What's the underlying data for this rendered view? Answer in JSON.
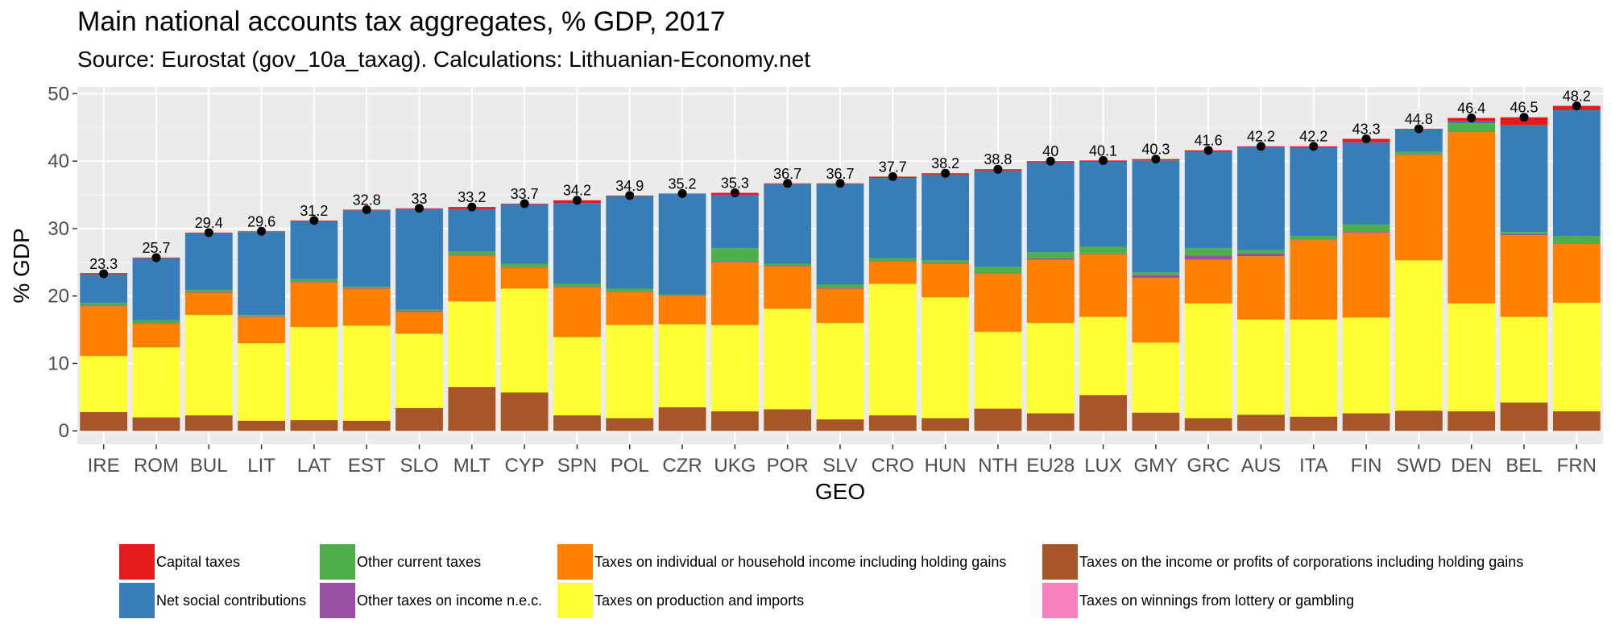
{
  "chart_data": {
    "type": "bar",
    "stacked": true,
    "title": "Main national accounts tax aggregates, % GDP,  2017",
    "subtitle": "Source: Eurostat (gov_10a_taxag). Calculations: Lithuanian-Economy.net",
    "xlabel": "GEO",
    "ylabel": "% GDP",
    "ylim": [
      -2,
      51
    ],
    "yticks": [
      0,
      10,
      20,
      30,
      40,
      50
    ],
    "grid": true,
    "legend_position": "bottom",
    "categories": [
      "IRE",
      "ROM",
      "BUL",
      "LIT",
      "LAT",
      "EST",
      "SLO",
      "MLT",
      "CYP",
      "SPN",
      "POL",
      "CZR",
      "UKG",
      "POR",
      "SLV",
      "CRO",
      "HUN",
      "NTH",
      "EU28",
      "LUX",
      "GMY",
      "GRC",
      "AUS",
      "ITA",
      "FIN",
      "SWD",
      "DEN",
      "BEL",
      "FRN"
    ],
    "totals": [
      23.3,
      25.7,
      29.4,
      29.6,
      31.2,
      32.8,
      33,
      33.2,
      33.7,
      34.2,
      34.9,
      35.2,
      35.3,
      36.7,
      36.7,
      37.7,
      38.2,
      38.8,
      40,
      40.1,
      40.3,
      41.6,
      42.2,
      42.2,
      43.3,
      44.8,
      46.4,
      46.5,
      48.2
    ],
    "total_labels": [
      "23.3",
      "25.7",
      "29.4",
      "29.6",
      "31.2",
      "32.8",
      "33",
      "33.2",
      "33.7",
      "34.2",
      "34.9",
      "35.2",
      "35.3",
      "36.7",
      "36.7",
      "37.7",
      "38.2",
      "38.8",
      "40",
      "40.1",
      "40.3",
      "41.6",
      "42.2",
      "42.2",
      "43.3",
      "44.8",
      "46.4",
      "46.5",
      "48.2"
    ],
    "series": [
      {
        "name": "Taxes on the income or profits of corporations including holding gains",
        "color": "#A65628",
        "values": [
          2.8,
          2.0,
          2.3,
          1.5,
          1.6,
          1.5,
          3.4,
          6.5,
          5.7,
          2.3,
          1.9,
          3.5,
          2.9,
          3.2,
          1.7,
          2.3,
          1.9,
          3.3,
          2.6,
          5.3,
          2.7,
          1.9,
          2.4,
          2.1,
          2.6,
          3.0,
          2.9,
          4.2,
          2.9
        ]
      },
      {
        "name": "Taxes on production and imports",
        "color": "#FFFF33",
        "values": [
          8.3,
          10.4,
          14.9,
          11.5,
          13.8,
          14.1,
          11.0,
          12.7,
          15.4,
          11.6,
          13.8,
          12.3,
          12.8,
          14.9,
          14.3,
          19.5,
          17.9,
          11.4,
          13.4,
          11.6,
          10.4,
          17.0,
          14.1,
          14.4,
          14.2,
          22.3,
          16.0,
          12.7,
          16.1
        ]
      },
      {
        "name": "Taxes on individual or household income including holding gains",
        "color": "#FF7F00",
        "values": [
          7.4,
          3.5,
          3.3,
          3.9,
          6.6,
          5.5,
          3.2,
          6.8,
          3.1,
          7.4,
          4.9,
          4.2,
          9.3,
          6.3,
          5.1,
          3.3,
          5.0,
          8.6,
          9.4,
          9.3,
          9.6,
          6.5,
          9.4,
          11.8,
          12.6,
          15.6,
          25.4,
          12.1,
          8.7
        ]
      },
      {
        "name": "Other taxes on income n.e.c.",
        "color": "#984EA3",
        "values": [
          0.1,
          0.1,
          0.1,
          0.1,
          0.1,
          0.1,
          0.2,
          0.1,
          0.1,
          0.1,
          0.1,
          0.1,
          0.1,
          0.1,
          0.1,
          0.1,
          0.1,
          0.1,
          0.2,
          0.1,
          0.4,
          0.6,
          0.4,
          0.1,
          0.1,
          0.1,
          0.1,
          0.2,
          0.1
        ]
      },
      {
        "name": "Other current taxes",
        "color": "#4DAF4A",
        "values": [
          0.4,
          0.4,
          0.3,
          0.2,
          0.4,
          0.2,
          0.2,
          0.5,
          0.5,
          0.4,
          0.4,
          0.1,
          2.0,
          0.3,
          0.5,
          0.4,
          0.4,
          0.9,
          0.9,
          1.0,
          0.4,
          1.1,
          0.5,
          0.5,
          1.1,
          0.4,
          1.2,
          0.3,
          1.1
        ]
      },
      {
        "name": "Net social contributions",
        "color": "#377EB8",
        "values": [
          4.2,
          9.2,
          8.4,
          12.3,
          8.6,
          11.3,
          14.9,
          6.3,
          8.8,
          12.0,
          13.7,
          15.0,
          7.9,
          11.8,
          14.9,
          11.9,
          12.7,
          14.3,
          13.3,
          12.6,
          16.6,
          14.3,
          15.3,
          13.1,
          12.2,
          3.3,
          0.3,
          15.8,
          18.7
        ]
      },
      {
        "name": "Taxes on winnings from lottery or gambling",
        "color": "#F781BF",
        "values": [
          0,
          0,
          0,
          0,
          0,
          0,
          0,
          0,
          0,
          0,
          0,
          0,
          0,
          0,
          0,
          0,
          0,
          0,
          0,
          0,
          0,
          0,
          0,
          0,
          0,
          0,
          0,
          0,
          0
        ]
      },
      {
        "name": "Capital taxes",
        "color": "#E41A1C",
        "values": [
          0.2,
          0.1,
          0.1,
          0.1,
          0.1,
          0.1,
          0.1,
          0.3,
          0.1,
          0.4,
          0.1,
          0.0,
          0.3,
          0.1,
          0.1,
          0.2,
          0.2,
          0.2,
          0.2,
          0.2,
          0.2,
          0.2,
          0.1,
          0.2,
          0.5,
          0.1,
          0.5,
          1.2,
          0.6
        ]
      }
    ]
  },
  "legend": {
    "items": [
      {
        "label": "Capital taxes",
        "color": "#E41A1C"
      },
      {
        "label": "Net social contributions",
        "color": "#377EB8"
      },
      {
        "label": "Other current taxes",
        "color": "#4DAF4A"
      },
      {
        "label": "Other taxes on income n.e.c.",
        "color": "#984EA3"
      },
      {
        "label": "Taxes on individual or household income including holding gains",
        "color": "#FF7F00"
      },
      {
        "label": "Taxes on production and imports",
        "color": "#FFFF33"
      },
      {
        "label": "Taxes on the income or profits of corporations including holding gains",
        "color": "#A65628"
      },
      {
        "label": "Taxes on winnings from lottery or gambling",
        "color": "#F781BF"
      }
    ]
  },
  "style": {
    "panel_bg": "#EBEBEB",
    "grid_major": "#FFFFFF",
    "total_marker_color": "#000000"
  }
}
